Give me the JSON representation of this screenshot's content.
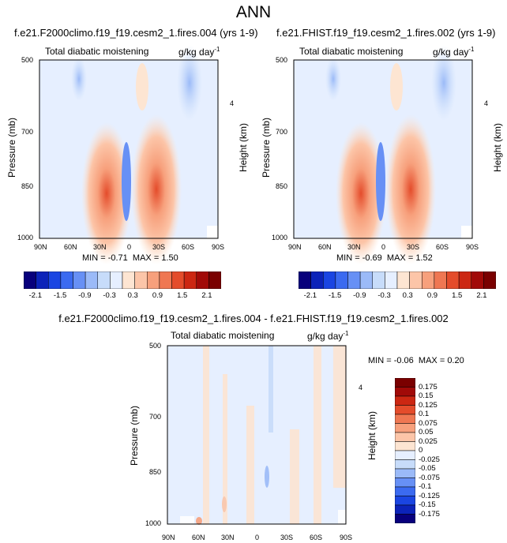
{
  "title": "ANN",
  "palette": {
    "diverging": [
      "#08007c",
      "#0c23b9",
      "#1a45e2",
      "#3b6af0",
      "#6790f5",
      "#9bbaf8",
      "#c7dcfa",
      "#e6efff",
      "#fde5d2",
      "#fcc5a8",
      "#f7a07c",
      "#ef7752",
      "#e44c2b",
      "#cc2712",
      "#a10a08",
      "#7a0000"
    ]
  },
  "charts": [
    {
      "title": "f.e21.F2000climo.f19_f19.cesm2_1.fires.004 (yrs 1-9)",
      "variable": "Total diabatic moistening",
      "units": "g/kg day",
      "units_exp": "-1",
      "ylabel": "Pressure (mb)",
      "ylabel_right": "Height (km)",
      "yticks": [
        "500",
        "700",
        "850",
        "1000"
      ],
      "height_tick": "4",
      "xticks": [
        "90N",
        "60N",
        "30N",
        "0",
        "30S",
        "60S",
        "90S"
      ],
      "min_label": "MIN =",
      "min_value": "-0.71",
      "max_label": "MAX =",
      "max_value": "1.50",
      "colorbar_labels": [
        "-2.1",
        "-1.5",
        "-0.9",
        "-0.3",
        "0.3",
        "0.9",
        "1.5",
        "2.1"
      ]
    },
    {
      "title": "f.e21.FHIST.f19_f19.cesm2_1.fires.002 (yrs 1-9)",
      "variable": "Total diabatic moistening",
      "units": "g/kg day",
      "units_exp": "-1",
      "ylabel": "Pressure (mb)",
      "ylabel_right": "Height (km)",
      "yticks": [
        "500",
        "700",
        "850",
        "1000"
      ],
      "height_tick": "4",
      "xticks": [
        "90N",
        "60N",
        "30N",
        "0",
        "30S",
        "60S",
        "90S"
      ],
      "min_label": "MIN =",
      "min_value": "-0.69",
      "max_label": "MAX =",
      "max_value": "1.52",
      "colorbar_labels": [
        "-2.1",
        "-1.5",
        "-0.9",
        "-0.3",
        "0.3",
        "0.9",
        "1.5",
        "2.1"
      ]
    },
    {
      "title": "f.e21.F2000climo.f19_f19.cesm2_1.fires.004 - f.e21.FHIST.f19_f19.cesm2_1.fires.002",
      "variable": "Total diabatic moistening",
      "units": "g/kg day",
      "units_exp": "-1",
      "ylabel": "Pressure (mb)",
      "ylabel_right": "Height (km)",
      "yticks": [
        "500",
        "700",
        "850",
        "1000"
      ],
      "height_tick": "4",
      "xticks": [
        "90N",
        "60N",
        "30N",
        "0",
        "30S",
        "60S",
        "90S"
      ],
      "min_label": "MIN =",
      "min_value": "-0.06",
      "max_label": "MAX =",
      "max_value": "0.20",
      "colorbar_labels": [
        "0.175",
        "0.15",
        "0.125",
        "0.1",
        "0.075",
        "0.05",
        "0.025",
        "0",
        "-0.025",
        "-0.05",
        "-0.075",
        "-0.1",
        "-0.125",
        "-0.15",
        "-0.175"
      ]
    }
  ],
  "chart_data": [
    {
      "type": "heatmap",
      "title": "f.e21.F2000climo.f19_f19.cesm2_1.fires.004 (yrs 1-9)",
      "xlabel": "",
      "ylabel": "Pressure (mb)",
      "x_categories": [
        "90N",
        "60N",
        "30N",
        "0",
        "30S",
        "60S",
        "90S"
      ],
      "y_categories": [
        "500",
        "700",
        "850",
        "1000"
      ],
      "values": [
        [
          0.0,
          -0.3,
          0.0,
          0.3,
          0.3,
          -0.5,
          0.0
        ],
        [
          0.0,
          0.0,
          0.3,
          0.0,
          0.6,
          0.0,
          0.0
        ],
        [
          0.0,
          0.3,
          0.9,
          -0.6,
          1.2,
          0.3,
          0.0
        ],
        [
          0.0,
          0.6,
          1.2,
          0.3,
          1.2,
          0.6,
          0.0
        ]
      ],
      "min": -0.71,
      "max": 1.5,
      "legend_levels": [
        -2.1,
        -1.8,
        -1.5,
        -1.2,
        -0.9,
        -0.6,
        -0.3,
        0,
        0.3,
        0.6,
        0.9,
        1.2,
        1.5,
        1.8,
        2.1
      ]
    },
    {
      "type": "heatmap",
      "title": "f.e21.FHIST.f19_f19.cesm2_1.fires.002 (yrs 1-9)",
      "xlabel": "",
      "ylabel": "Pressure (mb)",
      "x_categories": [
        "90N",
        "60N",
        "30N",
        "0",
        "30S",
        "60S",
        "90S"
      ],
      "y_categories": [
        "500",
        "700",
        "850",
        "1000"
      ],
      "values": [
        [
          0.0,
          -0.3,
          0.0,
          0.3,
          0.3,
          -0.5,
          0.0
        ],
        [
          0.0,
          0.0,
          0.3,
          0.0,
          0.6,
          0.0,
          0.0
        ],
        [
          0.0,
          0.3,
          0.9,
          -0.6,
          1.2,
          0.3,
          0.0
        ],
        [
          0.0,
          0.6,
          1.2,
          0.3,
          1.2,
          0.6,
          0.0
        ]
      ],
      "min": -0.69,
      "max": 1.52,
      "legend_levels": [
        -2.1,
        -1.8,
        -1.5,
        -1.2,
        -0.9,
        -0.6,
        -0.3,
        0,
        0.3,
        0.6,
        0.9,
        1.2,
        1.5,
        1.8,
        2.1
      ]
    },
    {
      "type": "heatmap",
      "title": "f.e21.F2000climo.f19_f19.cesm2_1.fires.004 - f.e21.FHIST.f19_f19.cesm2_1.fires.002",
      "xlabel": "",
      "ylabel": "Pressure (mb)",
      "x_categories": [
        "90N",
        "60N",
        "30N",
        "0",
        "30S",
        "60S",
        "90S"
      ],
      "y_categories": [
        "500",
        "700",
        "850",
        "1000"
      ],
      "values": [
        [
          0.0,
          0.0,
          -0.025,
          0.0,
          0.0,
          0.0,
          0.0
        ],
        [
          0.0,
          0.0,
          0.0,
          -0.025,
          0.0,
          0.0,
          0.0
        ],
        [
          0.0,
          0.0,
          0.025,
          -0.025,
          0.025,
          0.0,
          0.0
        ],
        [
          0.0,
          0.025,
          0.025,
          0.0,
          0.025,
          0.0,
          0.0
        ]
      ],
      "min": -0.06,
      "max": 0.2,
      "legend_levels": [
        0.175,
        0.15,
        0.125,
        0.1,
        0.075,
        0.05,
        0.025,
        0,
        -0.025,
        -0.05,
        -0.075,
        -0.1,
        -0.125,
        -0.15,
        -0.175
      ]
    }
  ]
}
